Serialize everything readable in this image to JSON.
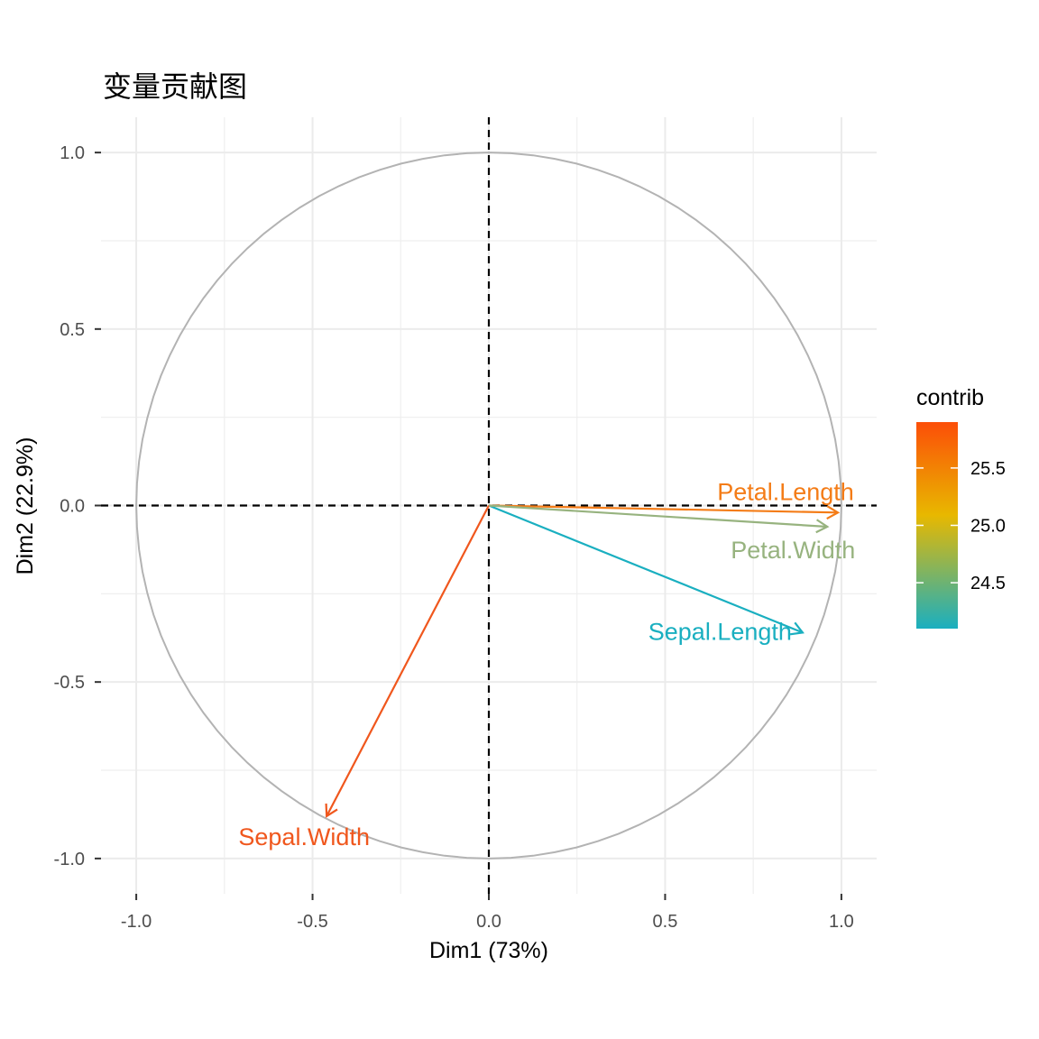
{
  "chart_data": {
    "type": "scatter",
    "subtype": "pca-variable-correlation-circle",
    "title": "变量贡献图",
    "xlabel": "Dim1 (73%)",
    "ylabel": "Dim2 (22.9%)",
    "xlim": [
      -1.1,
      1.1
    ],
    "ylim": [
      -1.1,
      1.1
    ],
    "x_ticks": [
      -1.0,
      -0.5,
      0.0,
      0.5,
      1.0
    ],
    "x_tick_labels": [
      "-1.0",
      "-0.5",
      "0.0",
      "0.5",
      "1.0"
    ],
    "y_ticks": [
      -1.0,
      -0.5,
      0.0,
      0.5,
      1.0
    ],
    "y_tick_labels": [
      "-1.0",
      "-0.5",
      "0.0",
      "0.5",
      "1.0"
    ],
    "grid": true,
    "unit_circle": true,
    "reference_lines": {
      "x": 0,
      "y": 0,
      "style": "dashed"
    },
    "variables": [
      {
        "name": "Sepal.Length",
        "x": 0.89,
        "y": -0.36,
        "contrib": 24.1,
        "color": "#1AAFC0"
      },
      {
        "name": "Sepal.Width",
        "x": -0.46,
        "y": -0.88,
        "contrib": 25.9,
        "color": "#F0571D"
      },
      {
        "name": "Petal.Length",
        "x": 0.99,
        "y": -0.02,
        "contrib": 25.7,
        "color": "#F47C17"
      },
      {
        "name": "Petal.Width",
        "x": 0.96,
        "y": -0.06,
        "contrib": 24.4,
        "color": "#97B37F"
      }
    ],
    "legend": {
      "title": "contrib",
      "position": "right",
      "range": [
        24.1,
        25.9
      ],
      "ticks": [
        24.5,
        25.0,
        25.5
      ],
      "tick_labels": [
        "24.5",
        "25.0",
        "25.5"
      ],
      "gradient_colors": [
        "#1AAFC0",
        "#E8B800",
        "#FC4E08"
      ]
    }
  }
}
